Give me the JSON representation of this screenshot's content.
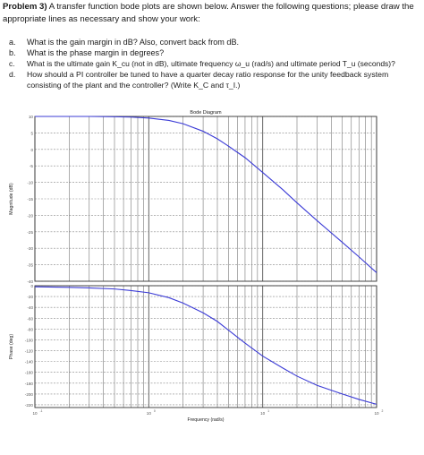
{
  "problem": {
    "number": "Problem 3)",
    "intro": "A transfer function bode plots are shown below. Answer the following questions; please draw the appropriate lines as necessary and show your work:",
    "questions": [
      {
        "label": "a.",
        "line1": "What is the gain margin in dB? Also, convert back from dB.",
        "line2": ""
      },
      {
        "label": "b.",
        "line1": "What is the phase margin in degrees?",
        "line2": ""
      },
      {
        "label": "c.",
        "line1": "What is the ultimate gain K_cu (not in dB), ultimate frequency ω_u (rad/s) and ultimate period T_u (seconds)?",
        "line2": ""
      },
      {
        "label": "d.",
        "line1": "How should a PI controller be tuned to have a quarter decay ratio response for the unity feedback system",
        "line2": "consisting of the plant and the controller? (Write K_C and τ_I.)"
      }
    ]
  },
  "chart_data": {
    "type": "line",
    "title": "Bode Diagram",
    "xlabel": "Frequency (rad/s)",
    "x_scale": "log",
    "x_ticks": [
      "10",
      "10",
      "10",
      "10"
    ],
    "x_tick_exponents": [
      "-1",
      "0",
      "1",
      "2"
    ],
    "xlim": [
      0.1,
      100
    ],
    "magnitude": {
      "ylabel": "Magnitude (dB)",
      "ylim": [
        -40,
        10
      ],
      "y_ticks": [
        "10",
        "5",
        "0",
        "-5",
        "-10",
        "-15",
        "-20",
        "-25",
        "-30",
        "-35",
        "-40"
      ],
      "series": [
        {
          "x": [
            0.1,
            0.2,
            0.3,
            0.5,
            0.7,
            1,
            1.5,
            2,
            3,
            4,
            5,
            7,
            10,
            15,
            20,
            30,
            50,
            70,
            100
          ],
          "values": [
            10,
            10,
            10,
            9.9,
            9.8,
            9.5,
            8.8,
            7.8,
            5.5,
            3.2,
            1.0,
            -2.5,
            -7,
            -12.2,
            -16.2,
            -21.6,
            -28.2,
            -32.6,
            -37.4
          ],
          "color": "#3b3bd6"
        }
      ]
    },
    "phase": {
      "ylabel": "Phase (deg)",
      "ylim": [
        -225,
        0
      ],
      "y_ticks": [
        "0",
        "-20",
        "-40",
        "-60",
        "-80",
        "-100",
        "-120",
        "-140",
        "-160",
        "-180",
        "-200",
        "-220"
      ],
      "series": [
        {
          "x": [
            0.1,
            0.2,
            0.3,
            0.5,
            0.7,
            1,
            1.5,
            2,
            3,
            4,
            5,
            7,
            10,
            15,
            20,
            30,
            50,
            70,
            100
          ],
          "values": [
            -2,
            -3,
            -4,
            -6,
            -9,
            -13,
            -22,
            -32,
            -50,
            -66,
            -82,
            -106,
            -130,
            -152,
            -167,
            -184,
            -200,
            -210,
            -219
          ],
          "color": "#3b3bd6"
        }
      ]
    },
    "grid": true
  }
}
